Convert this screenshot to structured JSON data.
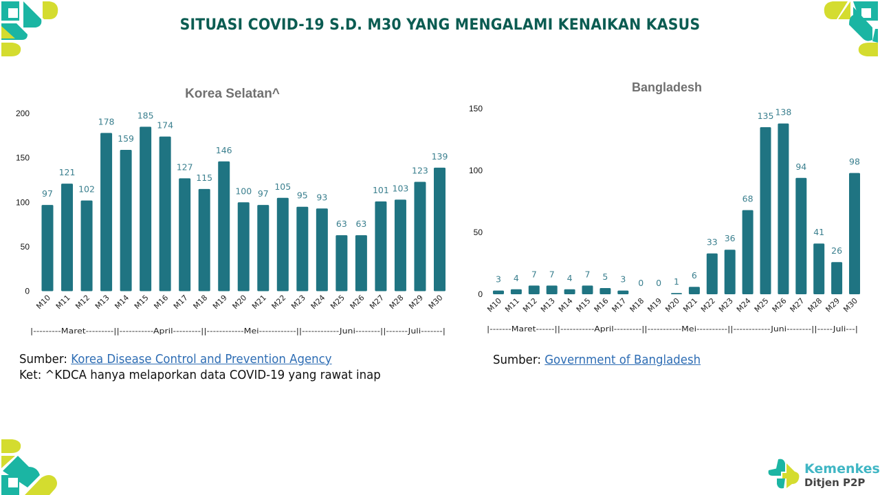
{
  "page": {
    "title": "SITUASI COVID-19 S.D. M30 YANG MENGALAMI KENAIKAN KASUS"
  },
  "colors": {
    "title": "#0b5c52",
    "bar": "#1f7482",
    "data_label": "#3a7f8e",
    "logo_teal": "#1bb5a3",
    "logo_lime": "#d4dc2f",
    "link": "#2e6db4"
  },
  "chart_data": [
    {
      "type": "bar",
      "title": "Korea Selatan^",
      "xlabel": "",
      "ylabel": "",
      "categories": [
        "M10",
        "M11",
        "M12",
        "M13",
        "M14",
        "M15",
        "M16",
        "M17",
        "M18",
        "M19",
        "M20",
        "M21",
        "M22",
        "M23",
        "M24",
        "M25",
        "M26",
        "M27",
        "M28",
        "M29",
        "M30"
      ],
      "values": [
        97,
        121,
        102,
        178,
        159,
        185,
        174,
        127,
        115,
        146,
        100,
        97,
        105,
        95,
        93,
        63,
        63,
        101,
        103,
        123,
        139
      ],
      "ylim": [
        0,
        200
      ],
      "yticks": [
        0,
        50,
        100,
        150,
        200
      ],
      "grid": false,
      "data_labels": true,
      "month_axis": "|---------Maret---------||-----------April---------||------------Mei------------||------------Juni--------||-------Juli-------|"
    },
    {
      "type": "bar",
      "title": "Bangladesh",
      "xlabel": "",
      "ylabel": "",
      "categories": [
        "M10",
        "M11",
        "M12",
        "M13",
        "M14",
        "M15",
        "M16",
        "M17",
        "M18",
        "M19",
        "M20",
        "M21",
        "M22",
        "M23",
        "M24",
        "M25",
        "M26",
        "M27",
        "M28",
        "M29",
        "M30"
      ],
      "values": [
        3,
        4,
        7,
        7,
        4,
        7,
        5,
        3,
        0,
        0,
        1,
        6,
        33,
        36,
        68,
        135,
        138,
        94,
        41,
        26,
        98
      ],
      "ylim": [
        0,
        150
      ],
      "yticks": [
        0,
        50,
        100,
        150
      ],
      "grid": false,
      "data_labels": true,
      "month_axis": "|-------Maret------||-----------April---------||-----------Mei----------||------------Juni--------||-----Juli---|"
    }
  ],
  "sources": {
    "korea_prefix": "Sumber: ",
    "korea_link": "Korea Disease Control and Prevention Agency",
    "korea_note": "Ket: ^KDCA hanya melaporkan data COVID-19 yang rawat inap",
    "bangladesh_prefix": "Sumber: ",
    "bangladesh_link": "Government of Bangladesh"
  },
  "brand": {
    "name": "Kemenkes",
    "sub": "Ditjen P2P"
  }
}
